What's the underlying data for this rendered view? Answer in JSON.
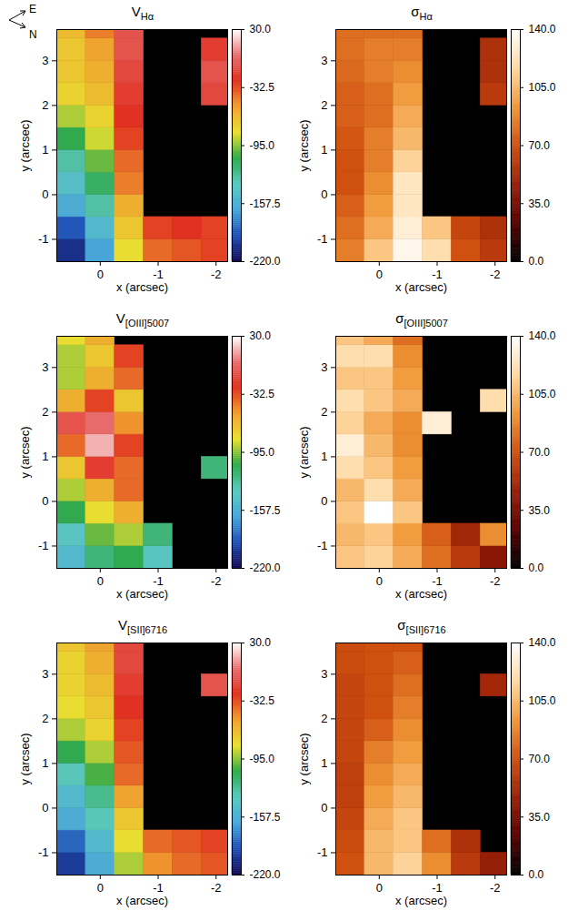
{
  "compass": {
    "labels": [
      "E",
      "N"
    ]
  },
  "chart_data": [
    {
      "type": "heatmap",
      "title": "V",
      "title_subscript": "Hα",
      "x_label": "x (arcsec)",
      "y_label": "y (arcsec)",
      "xlim": [
        0.75,
        -2.2
      ],
      "ylim": [
        -1.5,
        3.7
      ],
      "xticks": [
        0,
        -1,
        -2
      ],
      "yticks": [
        -1,
        0,
        1,
        2,
        3
      ],
      "color": "rainbow",
      "cells": {
        "x": [
          0.5,
          0,
          -0.5,
          -1,
          -1.5,
          -2
        ],
        "y": [
          -1.25,
          -0.75,
          -0.25,
          0.25,
          0.75,
          1.25,
          1.75,
          2.25,
          2.75,
          3.25,
          3.75
        ],
        "values": [
          [
            -205,
            -165,
            -80,
            -40,
            -35,
            -30
          ],
          [
            -190,
            -150,
            -70,
            -30,
            -25,
            -30
          ],
          [
            -160,
            -130,
            -60,
            null,
            null,
            null
          ],
          [
            -145,
            -115,
            -45,
            null,
            null,
            null
          ],
          [
            -130,
            -100,
            -40,
            null,
            null,
            null
          ],
          [
            -110,
            -85,
            -30,
            null,
            null,
            null
          ],
          [
            -90,
            -75,
            -25,
            null,
            null,
            null
          ],
          [
            -75,
            -65,
            -20,
            null,
            null,
            -15
          ],
          [
            -70,
            -60,
            -15,
            null,
            null,
            -10
          ],
          [
            -70,
            -55,
            -10,
            null,
            null,
            -20
          ],
          [
            -65,
            -45,
            -10,
            null,
            null,
            null
          ]
        ]
      },
      "colorbar": {
        "range": [
          -220,
          30
        ],
        "ticks": [
          {
            "value": -220,
            "label": "-220.0"
          },
          {
            "value": -157.5,
            "label": "-157.5"
          },
          {
            "value": -95,
            "label": "-95.0"
          },
          {
            "value": -32.5,
            "label": "-32.5"
          },
          {
            "value": 30,
            "label": "30.0"
          }
        ]
      }
    },
    {
      "type": "heatmap",
      "title": "σ",
      "title_subscript": "Hα",
      "x_label": "x (arcsec)",
      "y_label": "y (arcsec)",
      "xlim": [
        0.75,
        -2.2
      ],
      "ylim": [
        -1.5,
        3.7
      ],
      "xticks": [
        0,
        -1,
        -2
      ],
      "yticks": [
        -1,
        0,
        1,
        2,
        3
      ],
      "color": "hot",
      "cells": {
        "x": [
          0.5,
          0,
          -0.5,
          -1,
          -1.5,
          -2
        ],
        "y": [
          -1.25,
          -0.75,
          -0.25,
          0.25,
          0.75,
          1.25,
          1.75,
          2.25,
          2.75,
          3.25,
          3.75
        ],
        "values": [
          [
            85,
            110,
            135,
            120,
            70,
            60
          ],
          [
            80,
            100,
            130,
            110,
            65,
            55
          ],
          [
            75,
            95,
            125,
            null,
            null,
            null
          ],
          [
            70,
            90,
            125,
            null,
            null,
            null
          ],
          [
            70,
            85,
            115,
            null,
            null,
            null
          ],
          [
            72,
            85,
            105,
            null,
            null,
            null
          ],
          [
            75,
            80,
            100,
            null,
            null,
            null
          ],
          [
            75,
            80,
            95,
            null,
            null,
            60
          ],
          [
            78,
            85,
            90,
            null,
            null,
            55
          ],
          [
            80,
            85,
            85,
            null,
            null,
            55
          ],
          [
            80,
            80,
            80,
            null,
            null,
            null
          ]
        ]
      },
      "colorbar": {
        "range": [
          0,
          140
        ],
        "ticks": [
          {
            "value": 0,
            "label": "0.0"
          },
          {
            "value": 35,
            "label": "35.0"
          },
          {
            "value": 70,
            "label": "70.0"
          },
          {
            "value": 105,
            "label": "105.0"
          },
          {
            "value": 140,
            "label": "140.0"
          }
        ]
      }
    },
    {
      "type": "heatmap",
      "title": "V",
      "title_subscript": "[OIII]5007",
      "x_label": "x (arcsec)",
      "y_label": "y (arcsec)",
      "xlim": [
        0.75,
        -2.2
      ],
      "ylim": [
        -1.5,
        3.7
      ],
      "xticks": [
        0,
        -1,
        -2
      ],
      "yticks": [
        -1,
        0,
        1,
        2,
        3
      ],
      "color": "rainbow",
      "cells": {
        "x": [
          0.5,
          0,
          -0.5,
          -1,
          -1.5,
          -2
        ],
        "y": [
          -1.25,
          -0.75,
          -0.25,
          0.25,
          0.75,
          1.25,
          1.75,
          2.25,
          2.75,
          3.25,
          3.75
        ],
        "values": [
          [
            -150,
            -120,
            -110,
            -140,
            null,
            null
          ],
          [
            -140,
            -100,
            -90,
            -120,
            null,
            null
          ],
          [
            -110,
            -80,
            -60,
            null,
            null,
            null
          ],
          [
            -90,
            -60,
            -40,
            null,
            null,
            null
          ],
          [
            -70,
            -20,
            -40,
            null,
            null,
            -120
          ],
          [
            -40,
            15,
            -30,
            null,
            null,
            null
          ],
          [
            -10,
            0,
            -50,
            null,
            null,
            null
          ],
          [
            -60,
            -30,
            -70,
            null,
            null,
            null
          ],
          [
            -90,
            -60,
            -40,
            null,
            null,
            null
          ],
          [
            -90,
            -70,
            -30,
            null,
            null,
            null
          ],
          [
            -80,
            -60,
            null,
            null,
            null,
            null
          ]
        ]
      },
      "colorbar": {
        "range": [
          -220,
          30
        ],
        "ticks": [
          {
            "value": -220,
            "label": "-220.0"
          },
          {
            "value": -157.5,
            "label": "-157.5"
          },
          {
            "value": -95,
            "label": "-95.0"
          },
          {
            "value": -32.5,
            "label": "-32.5"
          },
          {
            "value": 30,
            "label": "30.0"
          }
        ]
      }
    },
    {
      "type": "heatmap",
      "title": "σ",
      "title_subscript": "[OIII]5007",
      "x_label": "x (arcsec)",
      "y_label": "y (arcsec)",
      "xlim": [
        0.75,
        -2.2
      ],
      "ylim": [
        -1.5,
        3.7
      ],
      "xticks": [
        0,
        -1,
        -2
      ],
      "yticks": [
        -1,
        0,
        1,
        2,
        3
      ],
      "color": "hot",
      "cells": {
        "x": [
          0.5,
          0,
          -0.5,
          -1,
          -1.5,
          -2
        ],
        "y": [
          -1.25,
          -0.75,
          -0.25,
          0.25,
          0.75,
          1.25,
          1.75,
          2.25,
          2.75,
          3.25,
          3.75
        ],
        "values": [
          [
            110,
            115,
            100,
            80,
            60,
            40
          ],
          [
            105,
            110,
            95,
            75,
            50,
            90
          ],
          [
            110,
            140,
            110,
            null,
            null,
            null
          ],
          [
            105,
            120,
            100,
            null,
            null,
            null
          ],
          [
            120,
            110,
            95,
            null,
            null,
            null
          ],
          [
            130,
            105,
            90,
            null,
            null,
            null
          ],
          [
            115,
            100,
            90,
            130,
            null,
            null
          ],
          [
            120,
            110,
            100,
            null,
            null,
            120
          ],
          [
            110,
            110,
            95,
            null,
            null,
            null
          ],
          [
            120,
            120,
            90,
            null,
            null,
            null
          ],
          [
            110,
            100,
            80,
            null,
            null,
            null
          ]
        ]
      },
      "colorbar": {
        "range": [
          0,
          140
        ],
        "ticks": [
          {
            "value": 0,
            "label": "0.0"
          },
          {
            "value": 35,
            "label": "35.0"
          },
          {
            "value": 70,
            "label": "70.0"
          },
          {
            "value": 105,
            "label": "105.0"
          },
          {
            "value": 140,
            "label": "140.0"
          }
        ]
      }
    },
    {
      "type": "heatmap",
      "title": "V",
      "title_subscript": "[SII]6716",
      "x_label": "x (arcsec)",
      "y_label": "y (arcsec)",
      "xlim": [
        0.75,
        -2.2
      ],
      "ylim": [
        -1.5,
        3.7
      ],
      "xticks": [
        0,
        -1,
        -2
      ],
      "yticks": [
        -1,
        0,
        1,
        2,
        3
      ],
      "color": "rainbow",
      "cells": {
        "x": [
          0.5,
          0,
          -0.5,
          -1,
          -1.5,
          -2
        ],
        "y": [
          -1.25,
          -0.75,
          -0.25,
          0.25,
          0.75,
          1.25,
          1.75,
          2.25,
          2.75,
          3.25,
          3.75
        ],
        "values": [
          [
            -200,
            -160,
            -90,
            -50,
            -40,
            -35
          ],
          [
            -185,
            -150,
            -80,
            -40,
            -35,
            -30
          ],
          [
            -160,
            -135,
            -70,
            null,
            null,
            null
          ],
          [
            -150,
            -125,
            -55,
            null,
            null,
            null
          ],
          [
            -135,
            -105,
            -40,
            null,
            null,
            null
          ],
          [
            -110,
            -90,
            -35,
            null,
            null,
            null
          ],
          [
            -90,
            -75,
            -30,
            null,
            null,
            null
          ],
          [
            -80,
            -70,
            -25,
            null,
            null,
            null
          ],
          [
            -75,
            -65,
            -20,
            null,
            null,
            -10
          ],
          [
            -75,
            -60,
            -15,
            null,
            null,
            null
          ],
          [
            -70,
            -55,
            -15,
            null,
            null,
            null
          ]
        ]
      },
      "colorbar": {
        "range": [
          -220,
          30
        ],
        "ticks": [
          {
            "value": -220,
            "label": "-220.0"
          },
          {
            "value": -157.5,
            "label": "-157.5"
          },
          {
            "value": -95,
            "label": "-95.0"
          },
          {
            "value": -32.5,
            "label": "-32.5"
          },
          {
            "value": 30,
            "label": "30.0"
          }
        ]
      }
    },
    {
      "type": "heatmap",
      "title": "σ",
      "title_subscript": "[SII]6716",
      "x_label": "x (arcsec)",
      "y_label": "y (arcsec)",
      "xlim": [
        0.75,
        -2.2
      ],
      "ylim": [
        -1.5,
        3.7
      ],
      "xticks": [
        0,
        -1,
        -2
      ],
      "yticks": [
        -1,
        0,
        1,
        2,
        3
      ],
      "color": "hot",
      "cells": {
        "x": [
          0.5,
          0,
          -0.5,
          -1,
          -1.5,
          -2
        ],
        "y": [
          -1.25,
          -0.75,
          -0.25,
          0.25,
          0.75,
          1.25,
          1.75,
          2.25,
          2.75,
          3.25,
          3.75
        ],
        "values": [
          [
            70,
            105,
            115,
            90,
            60,
            45
          ],
          [
            68,
            105,
            110,
            80,
            55,
            null
          ],
          [
            65,
            100,
            110,
            null,
            null,
            null
          ],
          [
            62,
            95,
            105,
            null,
            null,
            null
          ],
          [
            62,
            90,
            100,
            null,
            null,
            null
          ],
          [
            65,
            85,
            95,
            null,
            null,
            null
          ],
          [
            65,
            75,
            90,
            null,
            null,
            null
          ],
          [
            65,
            70,
            85,
            null,
            null,
            null
          ],
          [
            65,
            70,
            80,
            null,
            null,
            50
          ],
          [
            68,
            70,
            75,
            null,
            null,
            null
          ],
          [
            68,
            70,
            70,
            null,
            null,
            null
          ]
        ]
      },
      "colorbar": {
        "range": [
          0,
          140
        ],
        "ticks": [
          {
            "value": 0,
            "label": "0.0"
          },
          {
            "value": 35,
            "label": "35.0"
          },
          {
            "value": 70,
            "label": "70.0"
          },
          {
            "value": 105,
            "label": "105.0"
          },
          {
            "value": 140,
            "label": "140.0"
          }
        ]
      }
    }
  ]
}
